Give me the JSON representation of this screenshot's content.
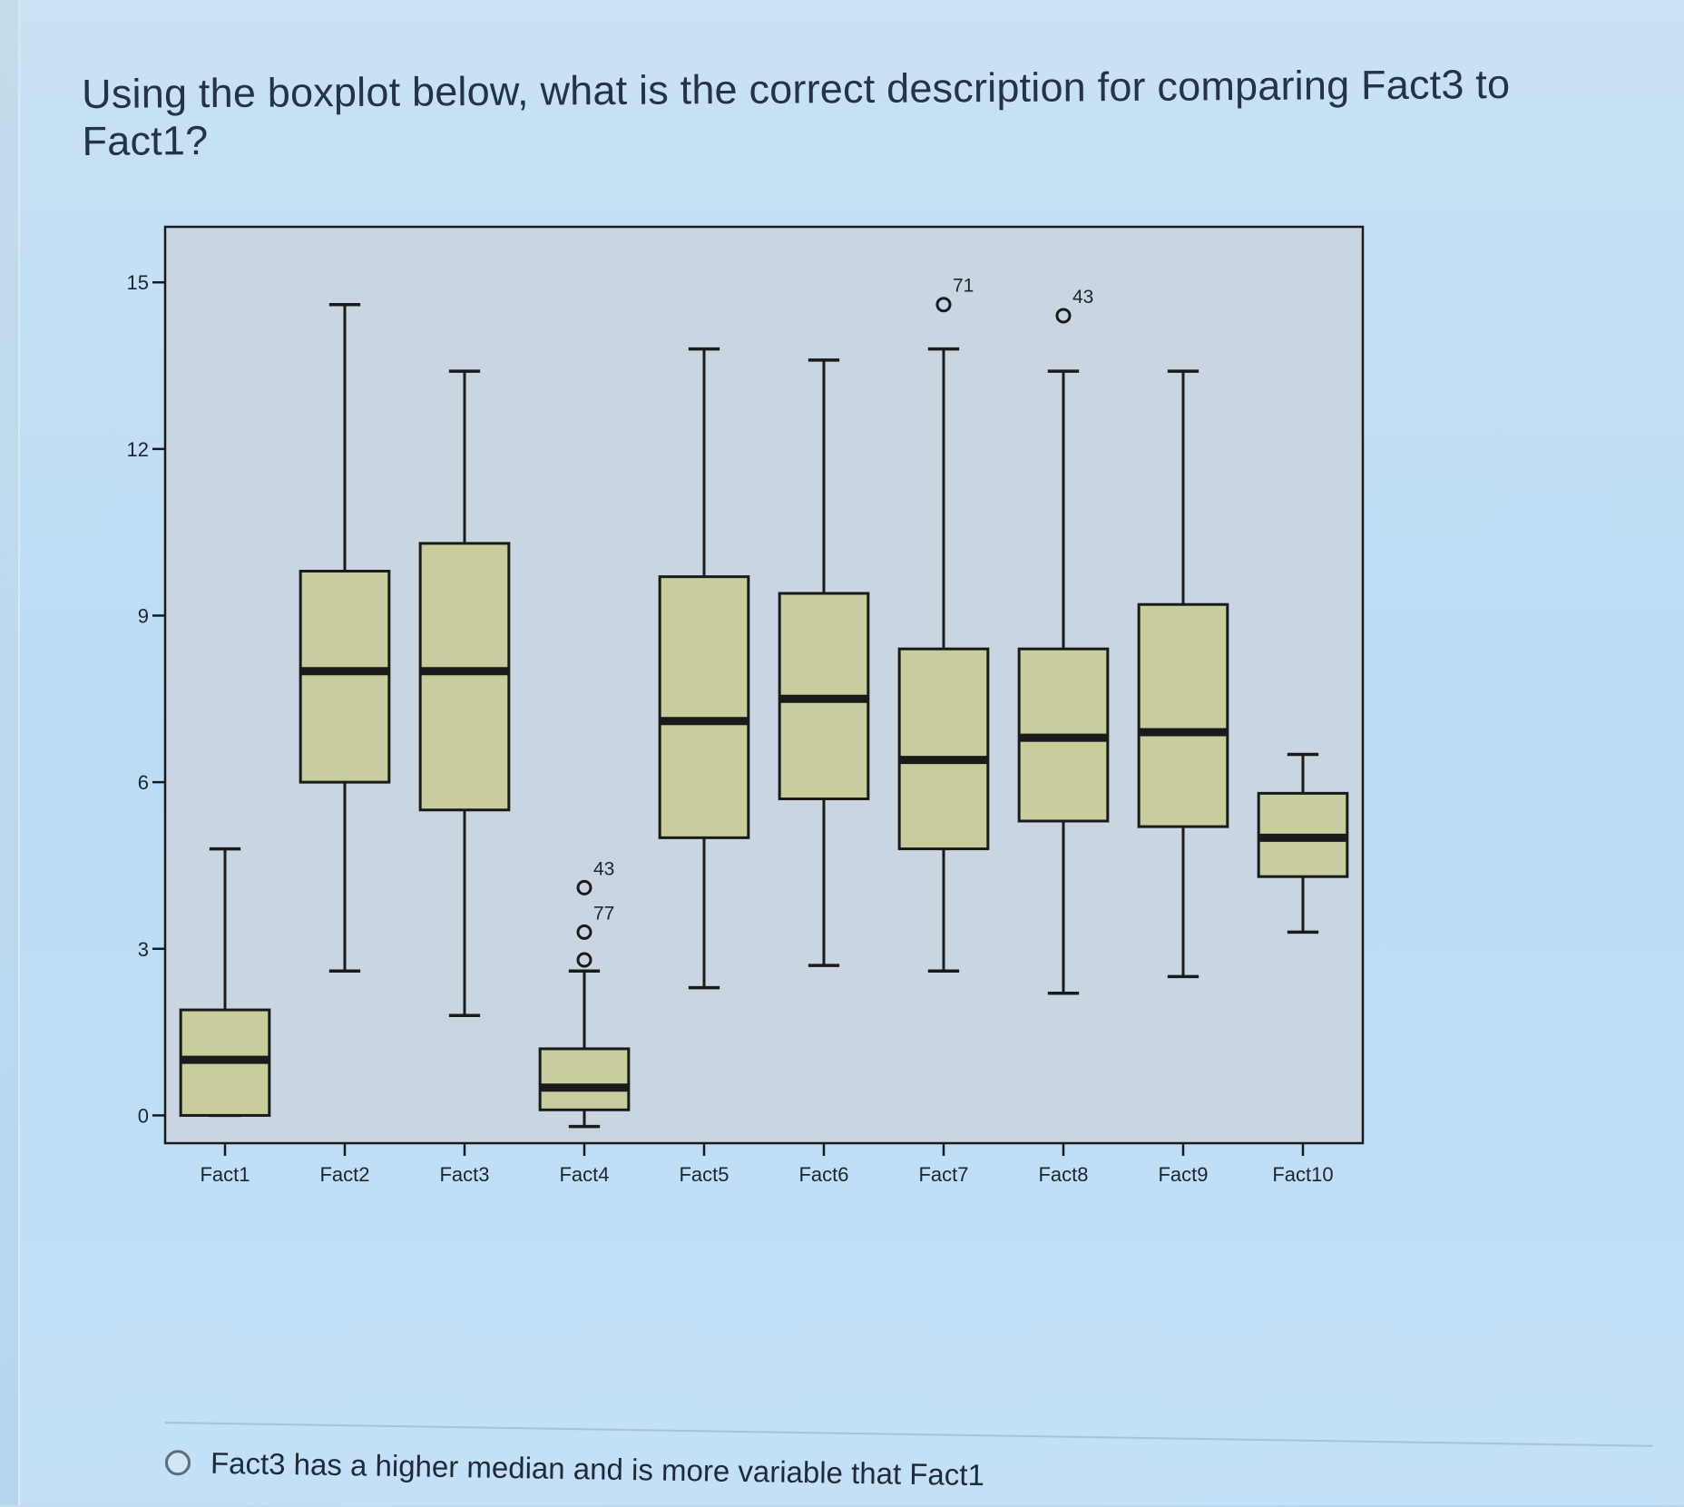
{
  "question": {
    "text": "Using the boxplot below, what is the correct description for comparing Fact3 to Fact1?"
  },
  "options": [
    {
      "label": "Fact3 has a higher median and is more variable that Fact1",
      "selected": false
    }
  ],
  "colors": {
    "plot_background": "#c9d5e0",
    "box_fill": "#c9cc9c",
    "stroke": "#1a1a1a"
  },
  "chart_data": {
    "type": "boxplot",
    "title": "",
    "xlabel": "",
    "ylabel": "",
    "ylim": [
      -0.5,
      16
    ],
    "yticks": [
      0,
      3,
      6,
      9,
      12,
      15
    ],
    "grid": false,
    "categories": [
      "Fact1",
      "Fact2",
      "Fact3",
      "Fact4",
      "Fact5",
      "Fact6",
      "Fact7",
      "Fact8",
      "Fact9",
      "Fact10"
    ],
    "boxes": [
      {
        "name": "Fact1",
        "min": 0,
        "q1": 0,
        "median": 1.0,
        "q3": 1.9,
        "max": 4.8,
        "outliers": []
      },
      {
        "name": "Fact2",
        "min": 2.6,
        "q1": 6.0,
        "median": 8.0,
        "q3": 9.8,
        "max": 14.6,
        "outliers": []
      },
      {
        "name": "Fact3",
        "min": 1.8,
        "q1": 5.5,
        "median": 8.0,
        "q3": 10.3,
        "max": 13.4,
        "outliers": []
      },
      {
        "name": "Fact4",
        "min": -0.2,
        "q1": 0.1,
        "median": 0.5,
        "q3": 1.2,
        "max": 2.6,
        "outliers": [
          {
            "value": 2.8,
            "label": ""
          },
          {
            "value": 3.3,
            "label": "77"
          },
          {
            "value": 4.1,
            "label": "43"
          }
        ]
      },
      {
        "name": "Fact5",
        "min": 2.3,
        "q1": 5.0,
        "median": 7.1,
        "q3": 9.7,
        "max": 13.8,
        "outliers": []
      },
      {
        "name": "Fact6",
        "min": 2.7,
        "q1": 5.7,
        "median": 7.5,
        "q3": 9.4,
        "max": 13.6,
        "outliers": []
      },
      {
        "name": "Fact7",
        "min": 2.6,
        "q1": 4.8,
        "median": 6.4,
        "q3": 8.4,
        "max": 13.8,
        "outliers": [
          {
            "value": 14.6,
            "label": "71"
          }
        ]
      },
      {
        "name": "Fact8",
        "min": 2.2,
        "q1": 5.3,
        "median": 6.8,
        "q3": 8.4,
        "max": 13.4,
        "outliers": [
          {
            "value": 14.4,
            "label": "43"
          }
        ]
      },
      {
        "name": "Fact9",
        "min": 2.5,
        "q1": 5.2,
        "median": 6.9,
        "q3": 9.2,
        "max": 13.4,
        "outliers": []
      },
      {
        "name": "Fact10",
        "min": 3.3,
        "q1": 4.3,
        "median": 5.0,
        "q3": 5.8,
        "max": 6.5,
        "outliers": []
      }
    ]
  }
}
